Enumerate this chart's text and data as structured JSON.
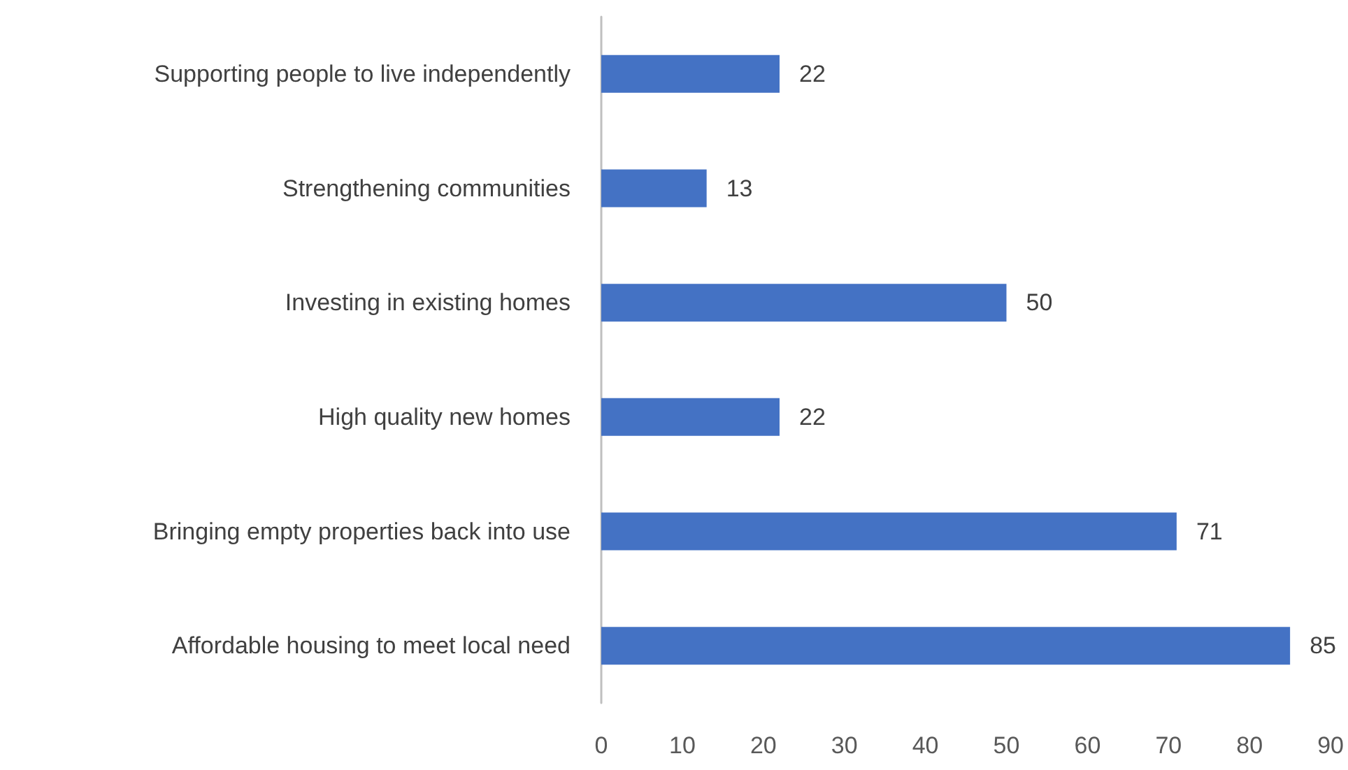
{
  "chart_data": {
    "type": "bar",
    "orientation": "horizontal",
    "categories": [
      "Supporting people to live independently",
      "Strengthening communities",
      "Investing in existing homes",
      "High quality new homes",
      "Bringing empty properties back into use",
      "Affordable housing to meet local need"
    ],
    "values": [
      22,
      13,
      50,
      22,
      71,
      85
    ],
    "color": "#4472c4",
    "xlim": [
      0,
      90
    ],
    "xticks": [
      0,
      10,
      20,
      30,
      40,
      50,
      60,
      70,
      80,
      90
    ],
    "grid": false,
    "data_labels": true
  }
}
